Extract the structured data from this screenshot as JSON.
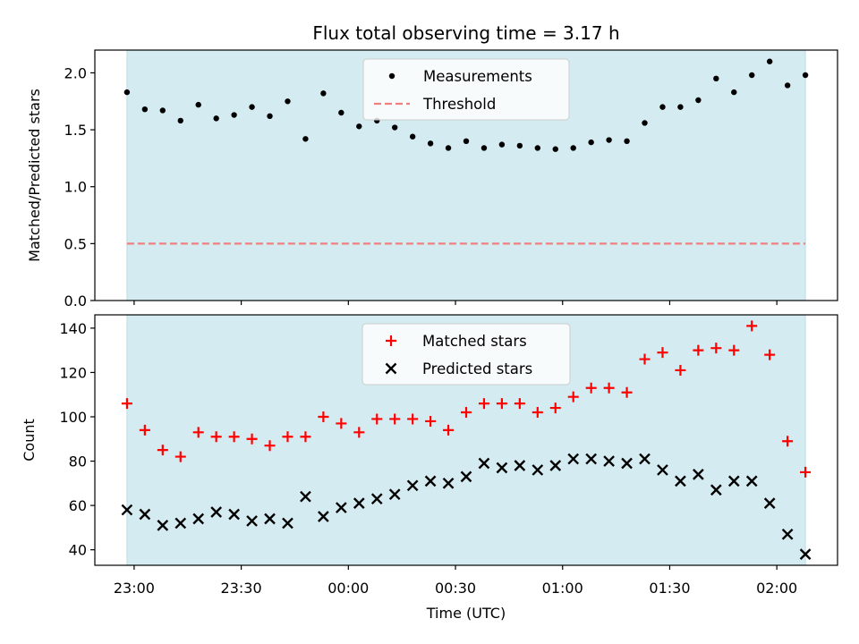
{
  "chart_data": {
    "type": "scatter",
    "title": "Flux total observing time = 3.17 h",
    "xlabel": "Time (UTC)",
    "x_tick_labels": [
      "23:00",
      "23:30",
      "00:00",
      "00:30",
      "01:00",
      "01:30",
      "02:00"
    ],
    "x_tick_times": [
      "23:00",
      "23:30",
      "00:00",
      "00:30",
      "01:00",
      "01:30",
      "02:00"
    ],
    "x_range": [
      "22:49",
      "02:17"
    ],
    "shaded_span": [
      "22:58",
      "02:08"
    ],
    "shade_color": "#d4ebf1",
    "x": [
      "22:58",
      "23:03",
      "23:08",
      "23:13",
      "23:18",
      "23:23",
      "23:28",
      "23:33",
      "23:38",
      "23:43",
      "23:48",
      "23:53",
      "23:58",
      "00:03",
      "00:08",
      "00:13",
      "00:18",
      "00:23",
      "00:28",
      "00:33",
      "00:38",
      "00:43",
      "00:48",
      "00:53",
      "00:58",
      "01:03",
      "01:08",
      "01:13",
      "01:18",
      "01:23",
      "01:28",
      "01:33",
      "01:38",
      "01:43",
      "01:48",
      "01:53",
      "01:58",
      "02:03",
      "02:08"
    ],
    "panels": [
      {
        "ylabel": "Matched/Predicted stars",
        "ylim": [
          0,
          2.2
        ],
        "y_ticks": [
          "0.0",
          "0.5",
          "1.0",
          "1.5",
          "2.0"
        ],
        "legend_placement": "upper-center",
        "series": [
          {
            "name": "Measurements",
            "marker": "dot",
            "color": "#000000",
            "values": [
              1.83,
              1.68,
              1.67,
              1.58,
              1.72,
              1.6,
              1.63,
              1.7,
              1.62,
              1.75,
              1.42,
              1.82,
              1.65,
              1.53,
              1.58,
              1.52,
              1.44,
              1.38,
              1.34,
              1.4,
              1.34,
              1.37,
              1.36,
              1.34,
              1.33,
              1.34,
              1.39,
              1.41,
              1.4,
              1.56,
              1.7,
              1.7,
              1.76,
              1.95,
              1.83,
              1.98,
              2.1,
              1.89,
              1.98
            ]
          }
        ],
        "threshold": {
          "name": "Threshold",
          "value": 0.5,
          "color": "#f08080",
          "style": "dashed"
        }
      },
      {
        "ylabel": "Count",
        "ylim": [
          33,
          146
        ],
        "y_ticks": [
          "40",
          "60",
          "80",
          "100",
          "120",
          "140"
        ],
        "legend_placement": "upper-center",
        "series": [
          {
            "name": "Matched stars",
            "marker": "plus",
            "color": "#ff0000",
            "values": [
              106,
              94,
              85,
              82,
              93,
              91,
              91,
              90,
              87,
              91,
              91,
              100,
              97,
              93,
              99,
              99,
              99,
              98,
              94,
              102,
              106,
              106,
              106,
              102,
              104,
              109,
              113,
              113,
              111,
              126,
              129,
              121,
              130,
              131,
              130,
              141,
              128,
              89,
              75
            ]
          },
          {
            "name": "Predicted stars",
            "marker": "x",
            "color": "#000000",
            "values": [
              58,
              56,
              51,
              52,
              54,
              57,
              56,
              53,
              54,
              52,
              64,
              55,
              59,
              61,
              63,
              65,
              69,
              71,
              70,
              73,
              79,
              77,
              78,
              76,
              78,
              81,
              81,
              80,
              79,
              81,
              76,
              71,
              74,
              67,
              71,
              71,
              61,
              47,
              38
            ]
          }
        ]
      }
    ]
  }
}
